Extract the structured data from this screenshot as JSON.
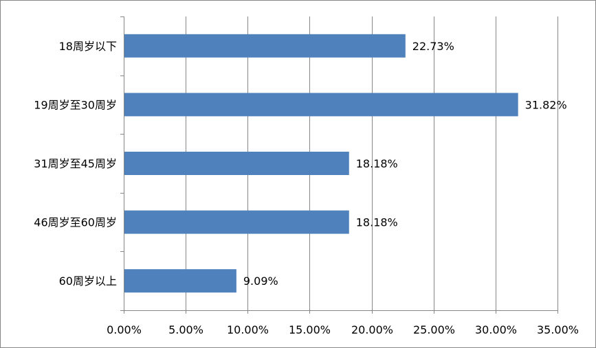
{
  "chart_data": {
    "type": "bar",
    "orientation": "horizontal",
    "categories": [
      "18周岁以下",
      "19周岁至30周岁",
      "31周岁至45周岁",
      "46周岁至60周岁",
      "60周岁以上"
    ],
    "values": [
      22.73,
      31.82,
      18.18,
      18.18,
      9.09
    ],
    "value_labels": [
      "22.73%",
      "31.82%",
      "18.18%",
      "18.18%",
      "9.09%"
    ],
    "xlim": [
      0,
      35
    ],
    "xticks": [
      0,
      5,
      10,
      15,
      20,
      25,
      30,
      35
    ],
    "xtick_labels": [
      "0.00%",
      "5.00%",
      "10.00%",
      "15.00%",
      "20.00%",
      "25.00%",
      "30.00%",
      "35.00%"
    ],
    "title": "",
    "xlabel": "",
    "ylabel": "",
    "grid": "vertical",
    "legend": "none",
    "bar_color": "#4F81BD",
    "grid_color": "#868686"
  }
}
